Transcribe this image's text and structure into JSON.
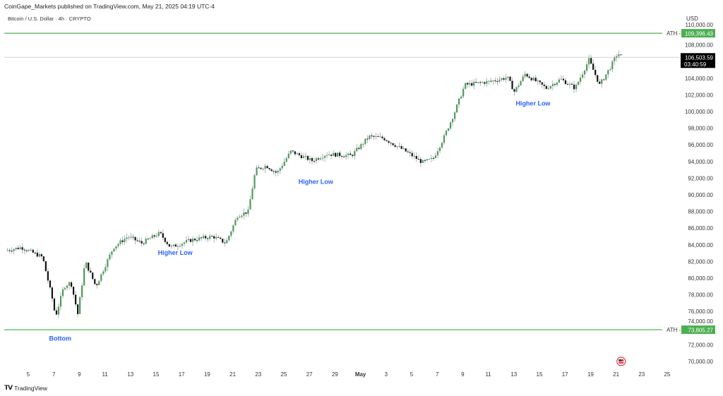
{
  "header": {
    "published": "CoinGape_Markets published on TradingView.com, May 21, 2025 04:19 UTC-4",
    "symbol": "Bitcoin / U.S. Dollar · 4h · CRYPTO",
    "currency": "USD"
  },
  "footer": {
    "brand": "TradingView",
    "logo_mark": "TV"
  },
  "colors": {
    "up": "#4e9a5a",
    "down": "#131313",
    "wick": "#9aa0a6",
    "ath_line": "#6fbf73",
    "ath_badge": "#4caf50",
    "annotation": "#2962ff",
    "last_price_badge": "#000000"
  },
  "chart_data": {
    "type": "candlestick",
    "timeframe": "4h",
    "ylim": [
      69000,
      111000
    ],
    "y_ticks": [
      "110,000.00",
      "108,000.00",
      "104,000.00",
      "102,000.00",
      "100,000.00",
      "98,000.00",
      "96,000.00",
      "94,000.00",
      "92,000.00",
      "90,000.00",
      "88,000.00",
      "86,000.00",
      "84,000.00",
      "82,000.00",
      "80,000.00",
      "78,000.00",
      "76,000.00",
      "74,000.00",
      "72,000.00",
      "70,000.00"
    ],
    "y_tick_values": [
      110000,
      108000,
      104000,
      102000,
      100000,
      98000,
      96000,
      94000,
      92000,
      90000,
      88000,
      86000,
      84000,
      82000,
      80000,
      78000,
      76000,
      74000,
      72000,
      70000
    ],
    "x_ticks": [
      "5",
      "7",
      "9",
      "11",
      "13",
      "15",
      "17",
      "19",
      "21",
      "23",
      "25",
      "27",
      "29",
      "May",
      "3",
      "5",
      "7",
      "9",
      "11",
      "13",
      "15",
      "17",
      "19",
      "21",
      "23",
      "25"
    ],
    "price_path": [
      [
        "2025-04-03T05:00",
        83300
      ],
      [
        "2025-04-04T11:00",
        83700
      ],
      [
        "2025-04-06T03:00",
        82500
      ],
      [
        "2025-04-06T23:00",
        77000
      ],
      [
        "2025-04-07T03:00",
        75300
      ],
      [
        "2025-04-07T19:00",
        79000
      ],
      [
        "2025-04-08T08:00",
        79500
      ],
      [
        "2025-04-08T21:00",
        75700
      ],
      [
        "2025-04-09T11:00",
        82000
      ],
      [
        "2025-04-10T07:00",
        79000
      ],
      [
        "2025-04-11T16:00",
        83700
      ],
      [
        "2025-04-12T19:00",
        85000
      ],
      [
        "2025-04-13T21:00",
        84200
      ],
      [
        "2025-04-15T07:00",
        85400
      ],
      [
        "2025-04-16T03:00",
        83700
      ],
      [
        "2025-04-17T19:00",
        84600
      ],
      [
        "2025-04-19T11:00",
        85000
      ],
      [
        "2025-04-20T11:00",
        84200
      ],
      [
        "2025-04-21T09:00",
        87500
      ],
      [
        "2025-04-22T05:00",
        88000
      ],
      [
        "2025-04-22T19:00",
        93000
      ],
      [
        "2025-04-23T15:00",
        93500
      ],
      [
        "2025-04-24T11:00",
        92600
      ],
      [
        "2025-04-25T13:00",
        95200
      ],
      [
        "2025-04-27T05:00",
        94100
      ],
      [
        "2025-04-28T08:00",
        94900
      ],
      [
        "2025-04-30T07:00",
        94700
      ],
      [
        "2025-05-01T16:00",
        97000
      ],
      [
        "2025-05-02T19:00",
        96800
      ],
      [
        "2025-05-04T11:00",
        95300
      ],
      [
        "2025-05-05T20:00",
        93900
      ],
      [
        "2025-05-06T16:00",
        94300
      ],
      [
        "2025-05-07T12:00",
        96800
      ],
      [
        "2025-05-08T08:00",
        99800
      ],
      [
        "2025-05-09T04:00",
        103200
      ],
      [
        "2025-05-11T03:00",
        103600
      ],
      [
        "2025-05-12T12:00",
        104100
      ],
      [
        "2025-05-13T01:00",
        102400
      ],
      [
        "2025-05-13T21:00",
        104500
      ],
      [
        "2025-05-15T13:00",
        102800
      ],
      [
        "2025-05-16T16:00",
        103900
      ],
      [
        "2025-05-17T19:00",
        102800
      ],
      [
        "2025-05-18T21:00",
        106200
      ],
      [
        "2025-05-19T17:00",
        103200
      ],
      [
        "2025-05-20T13:00",
        105300
      ],
      [
        "2025-05-21T03:00",
        107000
      ],
      [
        "2025-05-21T12:00",
        106503.59
      ]
    ],
    "horizontal_lines": [
      {
        "label": "ATH",
        "value": 109396.43,
        "value_text": "109,396.43"
      },
      {
        "label": "ATH",
        "value": 73805.27,
        "value_text": "73,805.27"
      }
    ],
    "last_price": {
      "value": 106503.59,
      "value_text": "106,503.59",
      "countdown": "03:40:59"
    },
    "annotations": [
      {
        "text": "Bottom",
        "date": "2025-04-07T12:00",
        "price": 72500
      },
      {
        "text": "Higher Low",
        "date": "2025-04-16T12:00",
        "price": 82800
      },
      {
        "text": "Higher Low",
        "date": "2025-04-27T12:00",
        "price": 91300
      },
      {
        "text": "Higher Low",
        "date": "2025-05-14T12:00",
        "price": 100700
      }
    ],
    "event_marker": {
      "icon": "us-flag-icon",
      "date": "2025-05-22T12:00"
    }
  }
}
